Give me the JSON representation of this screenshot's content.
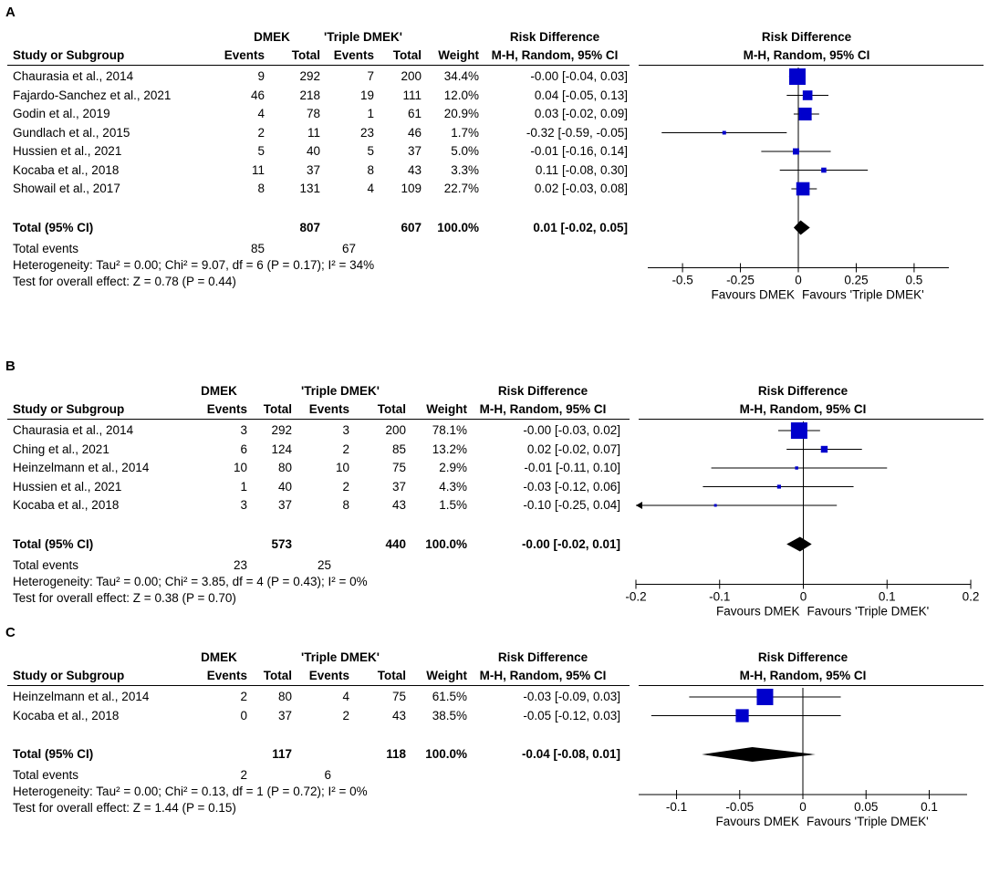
{
  "columns": {
    "study": "Study or Subgroup",
    "events": "Events",
    "total": "Total",
    "weight": "Weight",
    "effect_title": "Risk Difference",
    "effect_method": "M-H, Random, 95% CI",
    "group1": "DMEK",
    "group2": "'Triple DMEK'"
  },
  "colors": {
    "marker": "#0000cc",
    "line": "#000000",
    "diamond": "#000000"
  },
  "chart_data": [
    {
      "panel": "A",
      "type": "forest",
      "title": "Risk Difference",
      "subtitle": "M-H, Random, 95% CI",
      "xlim": [
        -0.65,
        0.65
      ],
      "ticks": [
        "-0.5",
        "-0.25",
        "0",
        "0.25",
        "0.5"
      ],
      "tick_values": [
        -0.5,
        -0.25,
        0,
        0.25,
        0.5
      ],
      "favours_left": "Favours DMEK",
      "favours_right": "Favours 'Triple DMEK'",
      "studies": [
        {
          "name": "Chaurasia et al., 2014",
          "e1": "9",
          "n1": "292",
          "e2": "7",
          "n2": "200",
          "weight": "34.4%",
          "ci_text": "-0.00 [-0.04, 0.03]",
          "est": -0.004,
          "lo": -0.04,
          "hi": 0.03,
          "w": 34.4
        },
        {
          "name": "Fajardo-Sanchez et al., 2021",
          "e1": "46",
          "n1": "218",
          "e2": "19",
          "n2": "111",
          "weight": "12.0%",
          "ci_text": "0.04 [-0.05, 0.13]",
          "est": 0.04,
          "lo": -0.05,
          "hi": 0.13,
          "w": 12.0
        },
        {
          "name": "Godin et al., 2019",
          "e1": "4",
          "n1": "78",
          "e2": "1",
          "n2": "61",
          "weight": "20.9%",
          "ci_text": "0.03 [-0.02, 0.09]",
          "est": 0.03,
          "lo": -0.02,
          "hi": 0.09,
          "w": 20.9
        },
        {
          "name": "Gundlach et al., 2015",
          "e1": "2",
          "n1": "11",
          "e2": "23",
          "n2": "46",
          "weight": "1.7%",
          "ci_text": "-0.32 [-0.59, -0.05]",
          "est": -0.32,
          "lo": -0.59,
          "hi": -0.05,
          "w": 1.7
        },
        {
          "name": "Hussien et al., 2021",
          "e1": "5",
          "n1": "40",
          "e2": "5",
          "n2": "37",
          "weight": "5.0%",
          "ci_text": "-0.01 [-0.16, 0.14]",
          "est": -0.01,
          "lo": -0.16,
          "hi": 0.14,
          "w": 5.0
        },
        {
          "name": "Kocaba et al., 2018",
          "e1": "11",
          "n1": "37",
          "e2": "8",
          "n2": "43",
          "weight": "3.3%",
          "ci_text": "0.11 [-0.08, 0.30]",
          "est": 0.11,
          "lo": -0.08,
          "hi": 0.3,
          "w": 3.3
        },
        {
          "name": "Showail et al., 2017",
          "e1": "8",
          "n1": "131",
          "e2": "4",
          "n2": "109",
          "weight": "22.7%",
          "ci_text": "0.02 [-0.03, 0.08]",
          "est": 0.02,
          "lo": -0.03,
          "hi": 0.08,
          "w": 22.7
        }
      ],
      "total": {
        "label": "Total (95% CI)",
        "n1": "807",
        "n2": "607",
        "weight": "100.0%",
        "ci_text": "0.01 [-0.02, 0.05]",
        "est": 0.01,
        "lo": -0.02,
        "hi": 0.05
      },
      "total_events": {
        "label": "Total events",
        "e1": "85",
        "e2": "67"
      },
      "heterogeneity": "Heterogeneity: Tau² = 0.00; Chi² = 9.07, df = 6 (P = 0.17); I² = 34%",
      "overall": "Test for overall effect: Z = 0.78 (P = 0.44)"
    },
    {
      "panel": "B",
      "type": "forest",
      "title": "Risk Difference",
      "subtitle": "M-H, Random, 95% CI",
      "xlim": [
        -0.2,
        0.2
      ],
      "ticks": [
        "-0.2",
        "-0.1",
        "0",
        "0.1",
        "0.2"
      ],
      "tick_values": [
        -0.2,
        -0.1,
        0,
        0.1,
        0.2
      ],
      "favours_left": "Favours DMEK",
      "favours_right": "Favours 'Triple DMEK'",
      "studies": [
        {
          "name": "Chaurasia et al., 2014",
          "e1": "3",
          "n1": "292",
          "e2": "3",
          "n2": "200",
          "weight": "78.1%",
          "ci_text": "-0.00 [-0.03, 0.02]",
          "est": -0.005,
          "lo": -0.03,
          "hi": 0.02,
          "w": 78.1
        },
        {
          "name": "Ching et al., 2021",
          "e1": "6",
          "n1": "124",
          "e2": "2",
          "n2": "85",
          "weight": "13.2%",
          "ci_text": "0.02 [-0.02, 0.07]",
          "est": 0.025,
          "lo": -0.02,
          "hi": 0.07,
          "w": 13.2
        },
        {
          "name": "Heinzelmann et al., 2014",
          "e1": "10",
          "n1": "80",
          "e2": "10",
          "n2": "75",
          "weight": "2.9%",
          "ci_text": "-0.01 [-0.11, 0.10]",
          "est": -0.008,
          "lo": -0.11,
          "hi": 0.1,
          "w": 2.9
        },
        {
          "name": "Hussien et al., 2021",
          "e1": "1",
          "n1": "40",
          "e2": "2",
          "n2": "37",
          "weight": "4.3%",
          "ci_text": "-0.03 [-0.12, 0.06]",
          "est": -0.029,
          "lo": -0.12,
          "hi": 0.06,
          "w": 4.3
        },
        {
          "name": "Kocaba et al., 2018",
          "e1": "3",
          "n1": "37",
          "e2": "8",
          "n2": "43",
          "weight": "1.5%",
          "ci_text": "-0.10 [-0.25, 0.04]",
          "est": -0.105,
          "lo": -0.25,
          "hi": 0.04,
          "w": 1.5,
          "arrow_left": true
        }
      ],
      "total": {
        "label": "Total (95% CI)",
        "n1": "573",
        "n2": "440",
        "weight": "100.0%",
        "ci_text": "-0.00 [-0.02, 0.01]",
        "est": -0.004,
        "lo": -0.02,
        "hi": 0.01
      },
      "total_events": {
        "label": "Total events",
        "e1": "23",
        "e2": "25"
      },
      "heterogeneity": "Heterogeneity: Tau² = 0.00; Chi² = 3.85, df = 4 (P = 0.43); I² = 0%",
      "overall": "Test for overall effect: Z = 0.38 (P = 0.70)"
    },
    {
      "panel": "C",
      "type": "forest",
      "title": "Risk Difference",
      "subtitle": "M-H, Random, 95% CI",
      "xlim": [
        -0.13,
        0.13
      ],
      "ticks": [
        "-0.1",
        "-0.05",
        "0",
        "0.05",
        "0.1"
      ],
      "tick_values": [
        -0.1,
        -0.05,
        0,
        0.05,
        0.1
      ],
      "favours_left": "Favours DMEK",
      "favours_right": "Favours 'Triple DMEK'",
      "studies": [
        {
          "name": "Heinzelmann et al., 2014",
          "e1": "2",
          "n1": "80",
          "e2": "4",
          "n2": "75",
          "weight": "61.5%",
          "ci_text": "-0.03 [-0.09, 0.03]",
          "est": -0.03,
          "lo": -0.09,
          "hi": 0.03,
          "w": 61.5
        },
        {
          "name": "Kocaba et al., 2018",
          "e1": "0",
          "n1": "37",
          "e2": "2",
          "n2": "43",
          "weight": "38.5%",
          "ci_text": "-0.05 [-0.12, 0.03]",
          "est": -0.048,
          "lo": -0.12,
          "hi": 0.03,
          "w": 38.5
        }
      ],
      "total": {
        "label": "Total (95% CI)",
        "n1": "117",
        "n2": "118",
        "weight": "100.0%",
        "ci_text": "-0.04 [-0.08, 0.01]",
        "est": -0.04,
        "lo": -0.08,
        "hi": 0.01
      },
      "total_events": {
        "label": "Total events",
        "e1": "2",
        "e2": "6"
      },
      "heterogeneity": "Heterogeneity: Tau² = 0.00; Chi² = 0.13, df = 1 (P = 0.72); I² = 0%",
      "overall": "Test for overall effect: Z = 1.44 (P = 0.15)"
    }
  ]
}
